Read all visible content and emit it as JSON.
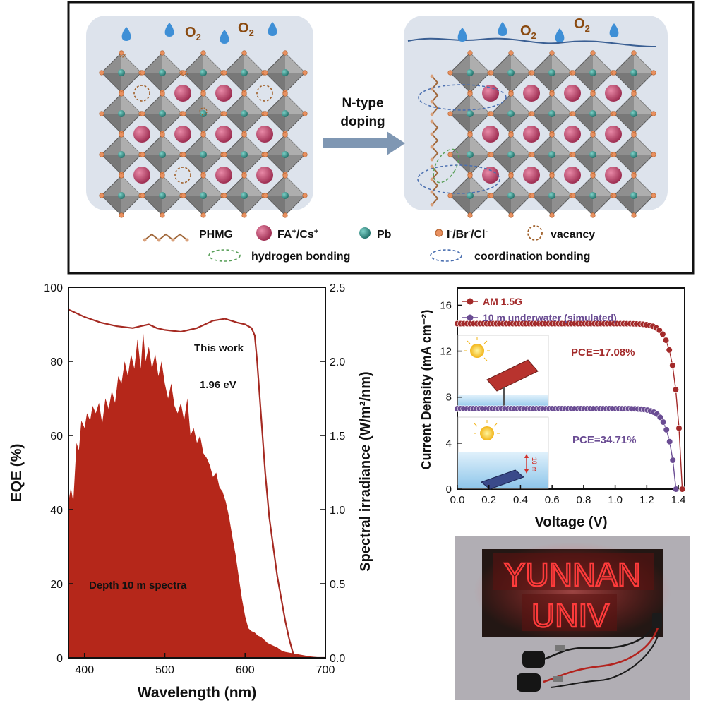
{
  "schematic": {
    "o2_label": "O",
    "o2_sub": "2",
    "arrow_label_line1": "N-type",
    "arrow_label_line2": "doping",
    "legend": {
      "phmg": "PHMG",
      "fa_cs_1": "FA",
      "fa_cs_sup1": "+",
      "fa_cs_2": "/Cs",
      "fa_cs_sup2": "+",
      "pb": "Pb",
      "halide_i": "I",
      "halide_br": "/Br",
      "halide_cl": "/Cl",
      "halide_sup": "-",
      "vacancy": "vacancy",
      "hydrogen_bonding": "hydrogen bonding",
      "coordination_bonding": "coordination bonding"
    },
    "colors": {
      "panel_bg": "#dde3ec",
      "octahedron": "#8c8c8c",
      "a_site": "#b03a5e",
      "pb": "#2e8b84",
      "halide": "#e89060",
      "water_drop": "#3e8fd6",
      "o2_text": "#8a4a10",
      "arrow": "#7f97b3"
    }
  },
  "chart_data": [
    {
      "type": "area",
      "xlabel": "Wavelength (nm)",
      "ylabel_left": "EQE (%)",
      "ylabel_right": "Spectral irradiance (W/m²/nm)",
      "xlim": [
        380,
        700
      ],
      "ylim_left": [
        0,
        100
      ],
      "ylim_right": [
        0,
        2.5
      ],
      "x_ticks": [
        "400",
        "500",
        "600",
        "700"
      ],
      "y_ticks_left": [
        "0",
        "20",
        "40",
        "60",
        "80",
        "100"
      ],
      "y_ticks_right": [
        "0.0",
        "0.5",
        "1.0",
        "1.5",
        "2.0",
        "2.5"
      ],
      "annotations": [
        "This work",
        "1.96 eV",
        "Depth 10 m spectra"
      ],
      "series": [
        {
          "axis": "left",
          "type": "line",
          "color": "#a52a22",
          "points": [
            [
              380,
              94
            ],
            [
              400,
              92
            ],
            [
              420,
              90.5
            ],
            [
              440,
              89.5
            ],
            [
              460,
              89
            ],
            [
              470,
              89.5
            ],
            [
              480,
              90
            ],
            [
              490,
              89
            ],
            [
              500,
              88.5
            ],
            [
              520,
              88
            ],
            [
              540,
              89
            ],
            [
              560,
              91
            ],
            [
              575,
              91.5
            ],
            [
              590,
              90.5
            ],
            [
              600,
              90
            ],
            [
              608,
              89
            ],
            [
              612,
              87
            ],
            [
              615,
              80
            ],
            [
              620,
              65
            ],
            [
              625,
              50
            ],
            [
              630,
              38
            ],
            [
              640,
              22
            ],
            [
              650,
              10
            ],
            [
              655,
              5
            ],
            [
              660,
              1
            ],
            [
              665,
              0
            ],
            [
              700,
              0
            ]
          ]
        },
        {
          "axis": "right",
          "type": "area",
          "color": "#b5271a",
          "points": [
            [
              380,
              1.05
            ],
            [
              383,
              1.15
            ],
            [
              386,
              1.05
            ],
            [
              390,
              1.45
            ],
            [
              393,
              1.4
            ],
            [
              396,
              1.6
            ],
            [
              400,
              1.55
            ],
            [
              403,
              1.65
            ],
            [
              407,
              1.6
            ],
            [
              410,
              1.7
            ],
            [
              414,
              1.65
            ],
            [
              418,
              1.72
            ],
            [
              422,
              1.58
            ],
            [
              426,
              1.75
            ],
            [
              430,
              1.68
            ],
            [
              434,
              1.8
            ],
            [
              438,
              1.72
            ],
            [
              442,
              1.9
            ],
            [
              446,
              1.85
            ],
            [
              450,
              2.0
            ],
            [
              454,
              1.9
            ],
            [
              458,
              2.05
            ],
            [
              462,
              1.95
            ],
            [
              466,
              2.15
            ],
            [
              470,
              1.95
            ],
            [
              473,
              2.2
            ],
            [
              476,
              2.0
            ],
            [
              480,
              2.1
            ],
            [
              484,
              1.95
            ],
            [
              488,
              2.05
            ],
            [
              492,
              1.9
            ],
            [
              496,
              2.0
            ],
            [
              500,
              1.85
            ],
            [
              504,
              1.75
            ],
            [
              508,
              1.85
            ],
            [
              512,
              1.7
            ],
            [
              516,
              1.65
            ],
            [
              520,
              1.72
            ],
            [
              524,
              1.6
            ],
            [
              528,
              1.75
            ],
            [
              532,
              1.5
            ],
            [
              536,
              1.55
            ],
            [
              540,
              1.45
            ],
            [
              544,
              1.5
            ],
            [
              548,
              1.38
            ],
            [
              552,
              1.35
            ],
            [
              556,
              1.3
            ],
            [
              560,
              1.22
            ],
            [
              564,
              1.25
            ],
            [
              568,
              1.15
            ],
            [
              572,
              1.12
            ],
            [
              576,
              1.05
            ],
            [
              580,
              0.95
            ],
            [
              584,
              0.82
            ],
            [
              588,
              0.7
            ],
            [
              592,
              0.55
            ],
            [
              596,
              0.4
            ],
            [
              600,
              0.28
            ],
            [
              604,
              0.2
            ],
            [
              608,
              0.18
            ],
            [
              612,
              0.17
            ],
            [
              616,
              0.15
            ],
            [
              620,
              0.14
            ],
            [
              624,
              0.12
            ],
            [
              628,
              0.1
            ],
            [
              632,
              0.09
            ],
            [
              636,
              0.08
            ],
            [
              640,
              0.07
            ],
            [
              645,
              0.05
            ],
            [
              650,
              0.04
            ],
            [
              660,
              0.03
            ],
            [
              670,
              0.02
            ],
            [
              680,
              0.01
            ],
            [
              690,
              0.005
            ],
            [
              700,
              0.0
            ]
          ]
        }
      ]
    },
    {
      "type": "scatter",
      "xlabel": "Voltage (V)",
      "ylabel": "Current Density (mA cm⁻²)",
      "xlim": [
        0,
        1.44
      ],
      "ylim": [
        0,
        17.5
      ],
      "x_ticks": [
        "0.0",
        "0.2",
        "0.4",
        "0.6",
        "0.8",
        "1.0",
        "1.2",
        "1.4"
      ],
      "y_ticks": [
        "0",
        "4",
        "8",
        "12",
        "16"
      ],
      "legend_position": "top-left",
      "series": [
        {
          "name": "AM 1.5G",
          "color": "#a32a2a",
          "annotation": "PCE=17.08%",
          "jsc": 14.4,
          "voc": 1.425,
          "n_points": 70
        },
        {
          "name": "10 m underwater (simulated)",
          "color": "#6a4c93",
          "annotation": "PCE=34.71%",
          "jsc": 7.0,
          "voc": 1.385,
          "n_points": 70
        }
      ],
      "inset_labels": [
        "10 m"
      ]
    }
  ],
  "photo": {
    "sign_line1": "YUNNAN",
    "sign_line2": "UNIV"
  }
}
